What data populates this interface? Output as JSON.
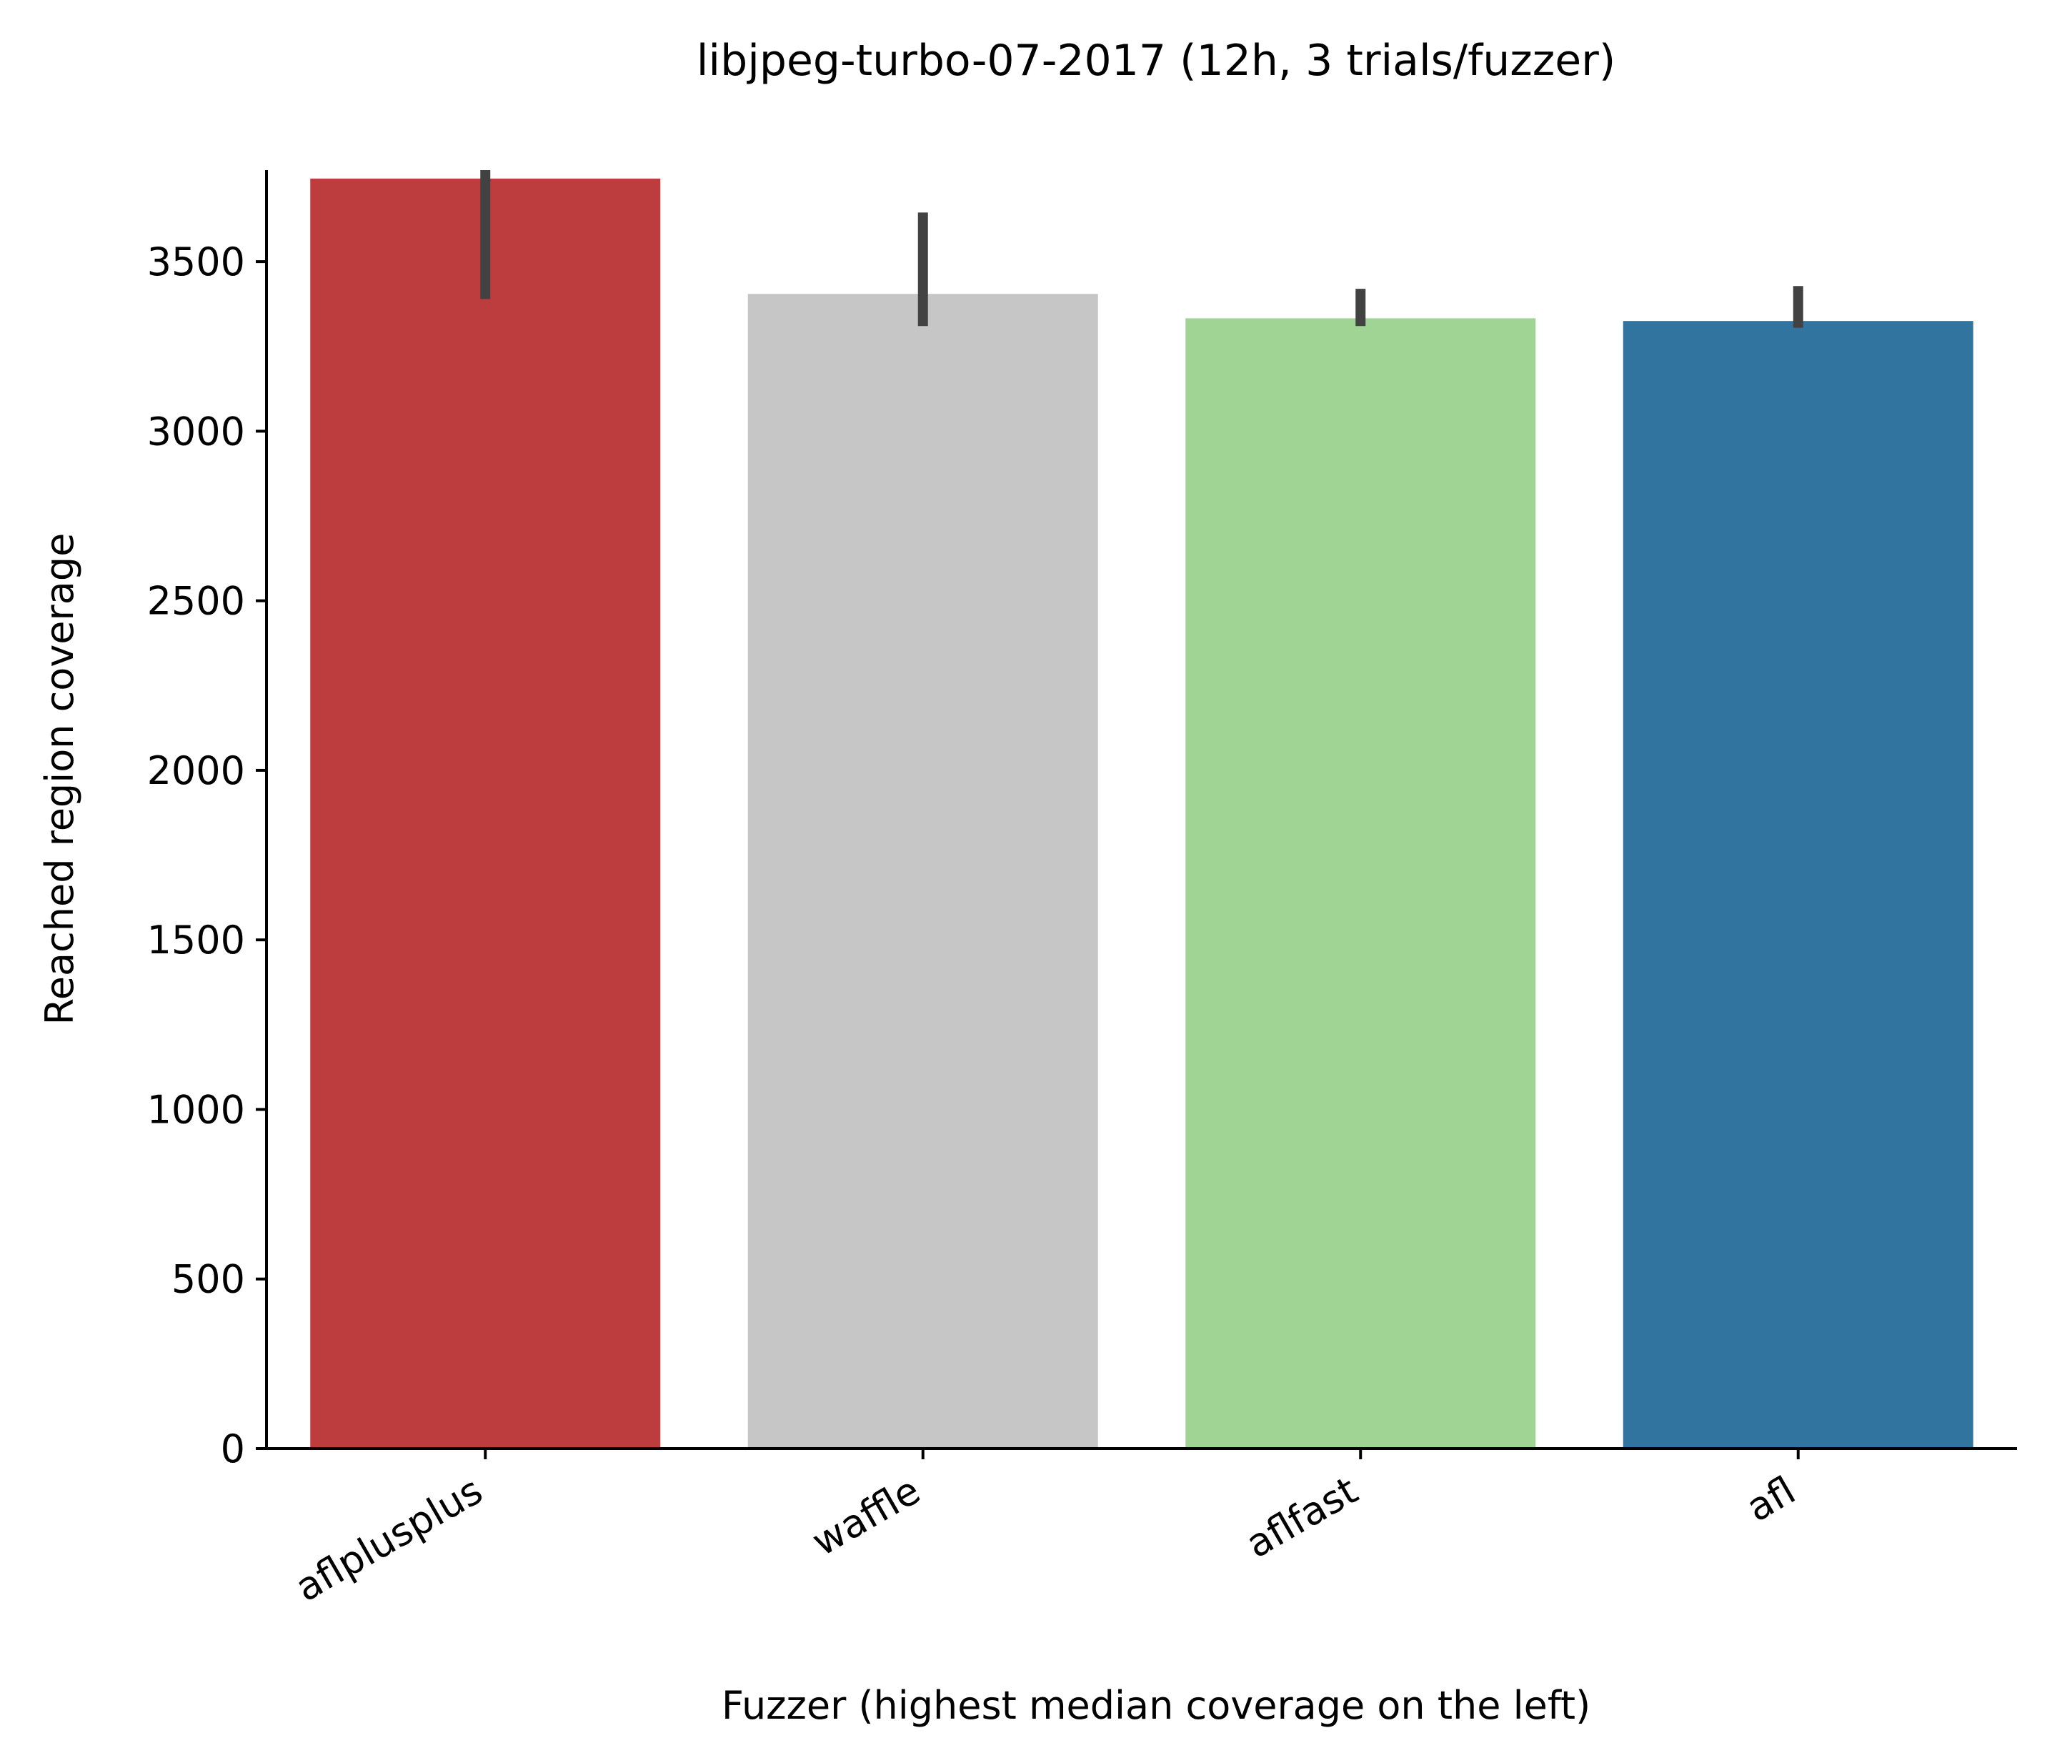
{
  "chart_data": {
    "type": "bar",
    "title": "libjpeg-turbo-07-2017 (12h, 3 trials/fuzzer)",
    "xlabel": "Fuzzer (highest median coverage on the left)",
    "ylabel": "Reached region coverage",
    "categories": [
      "aflplusplus",
      "waffle",
      "aflfast",
      "afl"
    ],
    "values": [
      3745,
      3405,
      3333,
      3325
    ],
    "error_low": [
      3390,
      3310,
      3310,
      3305
    ],
    "error_high": [
      3770,
      3645,
      3420,
      3428
    ],
    "colors": [
      "#bd3c3e",
      "#c6c6c6",
      "#a0d494",
      "#3274a0"
    ],
    "errorbar_color": "#424242",
    "ylim": [
      0,
      3770
    ],
    "yticks": [
      0,
      500,
      1000,
      1500,
      2000,
      2500,
      3000,
      3500
    ],
    "ytick_labels": [
      "0",
      "500",
      "1000",
      "1500",
      "2000",
      "2500",
      "3000",
      "3500"
    ],
    "xtick_rotation": -30,
    "grid": false,
    "legend": "none"
  }
}
